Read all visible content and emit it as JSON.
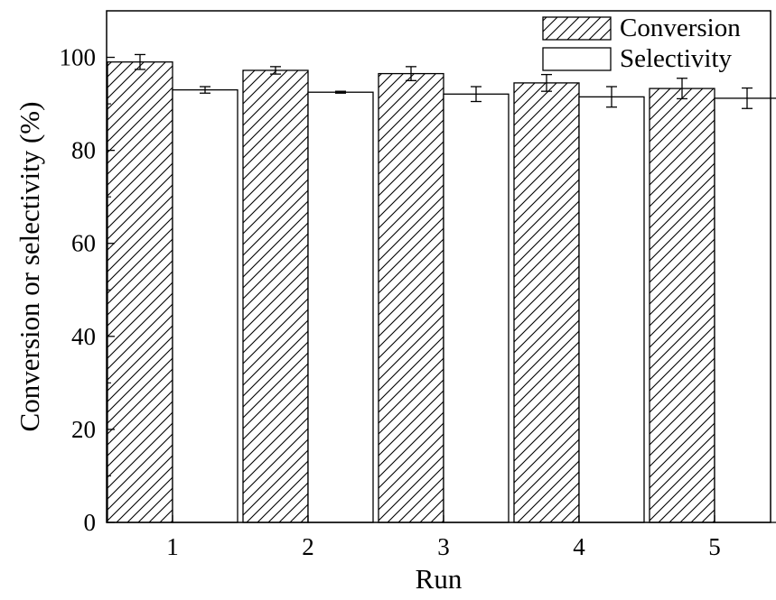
{
  "chart_data": {
    "type": "bar",
    "xlabel": "Run",
    "ylabel": "Conversion or selectivity (%)",
    "categories": [
      "1",
      "2",
      "3",
      "4",
      "5"
    ],
    "ylim": [
      0,
      110
    ],
    "yticks": [
      0,
      20,
      40,
      60,
      80,
      100
    ],
    "grid": false,
    "legend_position": "top-right",
    "series": [
      {
        "name": "Conversion",
        "pattern": "diagonal-hatch",
        "values": [
          99.0,
          97.2,
          96.5,
          94.5,
          93.3
        ],
        "errors": [
          1.6,
          0.8,
          1.5,
          1.8,
          2.2
        ]
      },
      {
        "name": "Selectivity",
        "pattern": "none",
        "values": [
          93.0,
          92.5,
          92.1,
          91.5,
          91.2
        ],
        "errors": [
          0.7,
          0.2,
          1.6,
          2.2,
          2.2
        ]
      }
    ]
  }
}
